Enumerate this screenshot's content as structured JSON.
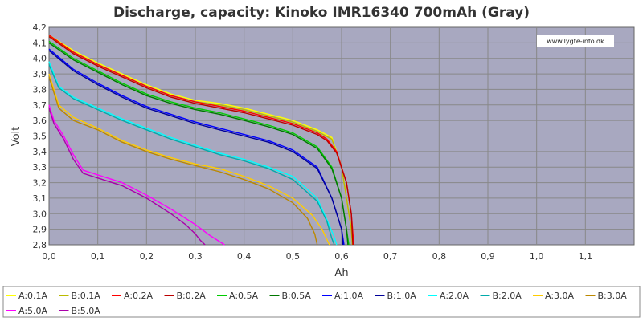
{
  "chart_data": {
    "type": "line",
    "title": "Discharge, capacity: Kinoko IMR16340 700mAh (Gray)",
    "watermark": "www.lygte-info.dk",
    "xlabel": "Ah",
    "ylabel": "Volt",
    "xlim": [
      0,
      1.2
    ],
    "ylim": [
      2.8,
      4.2
    ],
    "xticks": [
      "0,0",
      "0,1",
      "0,2",
      "0,3",
      "0,4",
      "0,5",
      "0,6",
      "0,7",
      "0,8",
      "0,9",
      "1,0",
      "1,1"
    ],
    "yticks": [
      "2,8",
      "2,9",
      "3,0",
      "3,1",
      "3,2",
      "3,3",
      "3,4",
      "3,5",
      "3,6",
      "3,7",
      "3,8",
      "3,9",
      "4,0",
      "4,1",
      "4,2"
    ],
    "grid": true,
    "plot_background": "#a8a8c0",
    "legend_position": "bottom",
    "series": [
      {
        "name": "A:0.1A",
        "color": "#ffff00",
        "x": [
          0,
          0.05,
          0.1,
          0.15,
          0.2,
          0.25,
          0.3,
          0.35,
          0.4,
          0.45,
          0.5,
          0.55,
          0.58,
          0.6,
          0.61,
          0.62,
          0.625
        ],
        "y": [
          4.15,
          4.05,
          3.97,
          3.9,
          3.83,
          3.77,
          3.73,
          3.71,
          3.68,
          3.64,
          3.6,
          3.54,
          3.49,
          3.3,
          3.1,
          2.9,
          2.8
        ]
      },
      {
        "name": "B:0.1A",
        "color": "#bbbb00",
        "x": [
          0,
          0.05,
          0.1,
          0.15,
          0.2,
          0.25,
          0.3,
          0.35,
          0.4,
          0.45,
          0.5,
          0.55,
          0.58,
          0.6,
          0.61,
          0.62,
          0.622
        ],
        "y": [
          4.14,
          4.04,
          3.96,
          3.89,
          3.82,
          3.76,
          3.72,
          3.7,
          3.67,
          3.63,
          3.59,
          3.53,
          3.48,
          3.3,
          3.1,
          2.9,
          2.8
        ]
      },
      {
        "name": "A:0.2A",
        "color": "#ff0000",
        "x": [
          0,
          0.05,
          0.1,
          0.15,
          0.2,
          0.25,
          0.3,
          0.35,
          0.4,
          0.45,
          0.5,
          0.55,
          0.57,
          0.59,
          0.61,
          0.62,
          0.625
        ],
        "y": [
          4.15,
          4.04,
          3.96,
          3.89,
          3.82,
          3.76,
          3.72,
          3.69,
          3.66,
          3.62,
          3.58,
          3.52,
          3.48,
          3.4,
          3.2,
          3.0,
          2.8
        ]
      },
      {
        "name": "B:0.2A",
        "color": "#bb0000",
        "x": [
          0,
          0.05,
          0.1,
          0.15,
          0.2,
          0.25,
          0.3,
          0.35,
          0.4,
          0.45,
          0.5,
          0.55,
          0.57,
          0.59,
          0.61,
          0.62,
          0.623
        ],
        "y": [
          4.14,
          4.03,
          3.95,
          3.88,
          3.81,
          3.75,
          3.71,
          3.68,
          3.65,
          3.61,
          3.57,
          3.51,
          3.47,
          3.39,
          3.2,
          3.0,
          2.8
        ]
      },
      {
        "name": "A:0.5A",
        "color": "#00cc00",
        "x": [
          0,
          0.05,
          0.1,
          0.15,
          0.2,
          0.25,
          0.3,
          0.35,
          0.4,
          0.45,
          0.5,
          0.55,
          0.58,
          0.6,
          0.61,
          0.615
        ],
        "y": [
          4.11,
          4.0,
          3.92,
          3.84,
          3.77,
          3.72,
          3.68,
          3.65,
          3.61,
          3.57,
          3.52,
          3.43,
          3.3,
          3.1,
          2.9,
          2.8
        ]
      },
      {
        "name": "B:0.5A",
        "color": "#007700",
        "x": [
          0,
          0.05,
          0.1,
          0.15,
          0.2,
          0.25,
          0.3,
          0.35,
          0.4,
          0.45,
          0.5,
          0.55,
          0.58,
          0.6,
          0.61,
          0.613
        ],
        "y": [
          4.1,
          3.99,
          3.91,
          3.83,
          3.76,
          3.71,
          3.67,
          3.64,
          3.6,
          3.56,
          3.51,
          3.42,
          3.29,
          3.1,
          2.9,
          2.8
        ]
      },
      {
        "name": "A:1.0A",
        "color": "#0000ff",
        "x": [
          0,
          0.05,
          0.1,
          0.15,
          0.2,
          0.25,
          0.3,
          0.35,
          0.4,
          0.45,
          0.5,
          0.55,
          0.58,
          0.6,
          0.605
        ],
        "y": [
          4.06,
          3.93,
          3.84,
          3.76,
          3.69,
          3.64,
          3.59,
          3.55,
          3.51,
          3.47,
          3.41,
          3.3,
          3.1,
          2.9,
          2.8
        ]
      },
      {
        "name": "B:1.0A",
        "color": "#000099",
        "x": [
          0,
          0.05,
          0.1,
          0.15,
          0.2,
          0.25,
          0.3,
          0.35,
          0.4,
          0.45,
          0.5,
          0.55,
          0.58,
          0.6,
          0.603
        ],
        "y": [
          4.05,
          3.92,
          3.83,
          3.75,
          3.68,
          3.63,
          3.58,
          3.54,
          3.5,
          3.46,
          3.4,
          3.29,
          3.1,
          2.9,
          2.8
        ]
      },
      {
        "name": "A:2.0A",
        "color": "#00ffff",
        "x": [
          0,
          0.02,
          0.05,
          0.1,
          0.15,
          0.2,
          0.25,
          0.3,
          0.35,
          0.4,
          0.45,
          0.5,
          0.55,
          0.57,
          0.585,
          0.59
        ],
        "y": [
          3.98,
          3.82,
          3.75,
          3.68,
          3.61,
          3.55,
          3.49,
          3.44,
          3.39,
          3.35,
          3.3,
          3.24,
          3.1,
          2.96,
          2.85,
          2.8
        ]
      },
      {
        "name": "B:2.0A",
        "color": "#00aaaa",
        "x": [
          0,
          0.02,
          0.05,
          0.1,
          0.15,
          0.2,
          0.25,
          0.3,
          0.35,
          0.4,
          0.45,
          0.5,
          0.55,
          0.57,
          0.58,
          0.585
        ],
        "y": [
          3.96,
          3.81,
          3.74,
          3.67,
          3.6,
          3.54,
          3.48,
          3.43,
          3.38,
          3.34,
          3.29,
          3.22,
          3.08,
          2.95,
          2.84,
          2.8
        ]
      },
      {
        "name": "A:3.0A",
        "color": "#ffcc00",
        "x": [
          0,
          0.02,
          0.05,
          0.1,
          0.15,
          0.2,
          0.25,
          0.3,
          0.35,
          0.4,
          0.45,
          0.5,
          0.54,
          0.56,
          0.575
        ],
        "y": [
          3.9,
          3.7,
          3.62,
          3.55,
          3.47,
          3.41,
          3.36,
          3.32,
          3.29,
          3.24,
          3.18,
          3.1,
          2.99,
          2.9,
          2.8
        ]
      },
      {
        "name": "B:3.0A",
        "color": "#bb8800",
        "x": [
          0,
          0.02,
          0.05,
          0.1,
          0.15,
          0.2,
          0.25,
          0.3,
          0.35,
          0.4,
          0.45,
          0.5,
          0.53,
          0.545,
          0.55
        ],
        "y": [
          3.88,
          3.68,
          3.6,
          3.54,
          3.46,
          3.4,
          3.35,
          3.31,
          3.27,
          3.22,
          3.16,
          3.07,
          2.97,
          2.87,
          2.8
        ]
      },
      {
        "name": "A:5.0A",
        "color": "#ff00ff",
        "x": [
          0,
          0.01,
          0.03,
          0.05,
          0.07,
          0.1,
          0.15,
          0.2,
          0.25,
          0.3,
          0.33,
          0.36
        ],
        "y": [
          3.7,
          3.6,
          3.5,
          3.38,
          3.28,
          3.25,
          3.2,
          3.12,
          3.03,
          2.93,
          2.86,
          2.8
        ]
      },
      {
        "name": "B:5.0A",
        "color": "#aa00aa",
        "x": [
          0,
          0.01,
          0.03,
          0.05,
          0.07,
          0.1,
          0.15,
          0.2,
          0.25,
          0.28,
          0.3,
          0.31,
          0.32
        ],
        "y": [
          3.68,
          3.58,
          3.48,
          3.35,
          3.26,
          3.23,
          3.18,
          3.1,
          3.0,
          2.93,
          2.87,
          2.83,
          2.8
        ]
      }
    ]
  }
}
